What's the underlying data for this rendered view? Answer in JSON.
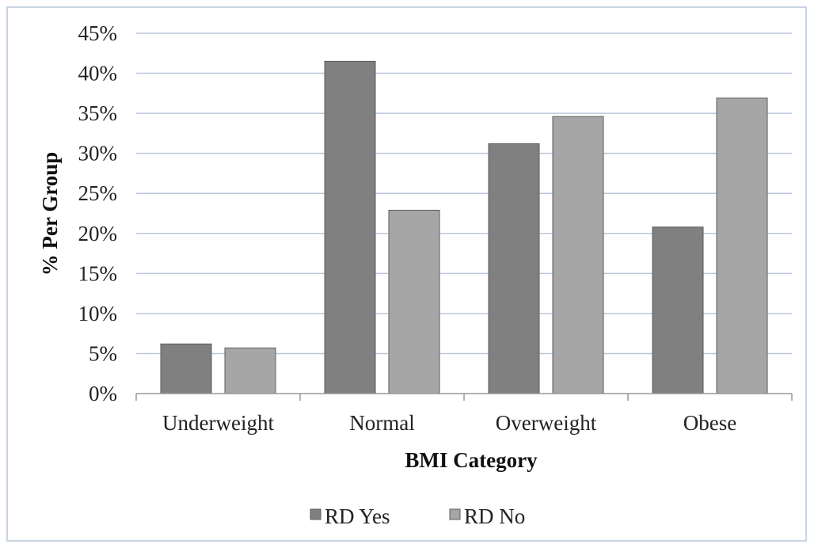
{
  "chart_data": {
    "type": "bar",
    "title": "",
    "xlabel": "BMI Category",
    "ylabel": "% Per Group",
    "categories": [
      "Underweight",
      "Normal",
      "Overweight",
      "Obese"
    ],
    "series": [
      {
        "name": "RD Yes",
        "values": [
          6.2,
          41.5,
          31.2,
          20.8
        ],
        "color": "#808080"
      },
      {
        "name": "RD No",
        "values": [
          5.7,
          22.9,
          34.6,
          36.9
        ],
        "color": "#a6a6a6"
      }
    ],
    "ylim": [
      0,
      45
    ],
    "yticks": [
      0,
      5,
      10,
      15,
      20,
      25,
      30,
      35,
      40,
      45
    ],
    "ytick_labels": [
      "0%",
      "5%",
      "10%",
      "15%",
      "20%",
      "25%",
      "30%",
      "35%",
      "40%",
      "45%"
    ],
    "grid": true,
    "legend_position": "bottom",
    "colors": {
      "gridline": "#b8c7dc",
      "axis": "#999999",
      "frame": "#c9d3e2"
    }
  }
}
